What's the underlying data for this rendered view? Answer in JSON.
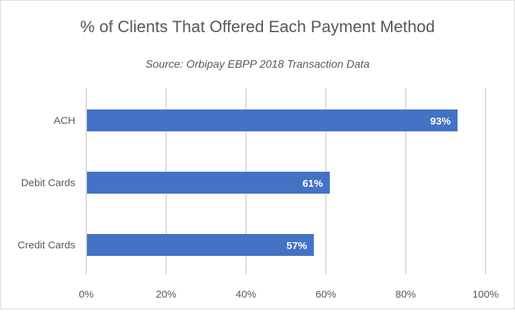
{
  "chart_data": {
    "type": "bar",
    "orientation": "horizontal",
    "title": "% of Clients That Offered Each Payment Method",
    "subtitle": "Source: Orbipay EBPP 2018 Transaction Data",
    "categories": [
      "ACH",
      "Debit Cards",
      "Credit Cards"
    ],
    "values": [
      93,
      61,
      57
    ],
    "data_labels": [
      "93%",
      "61%",
      "57%"
    ],
    "xlim": [
      0,
      100
    ],
    "x_ticks": [
      0,
      20,
      40,
      60,
      80,
      100
    ],
    "x_tick_labels": [
      "0%",
      "20%",
      "40%",
      "60%",
      "80%",
      "100%"
    ],
    "xlabel": "",
    "ylabel": "",
    "grid": true,
    "legend": "none",
    "bar_color": "#4472C4",
    "grid_color": "#d9d9d9",
    "text_color": "#595959"
  }
}
